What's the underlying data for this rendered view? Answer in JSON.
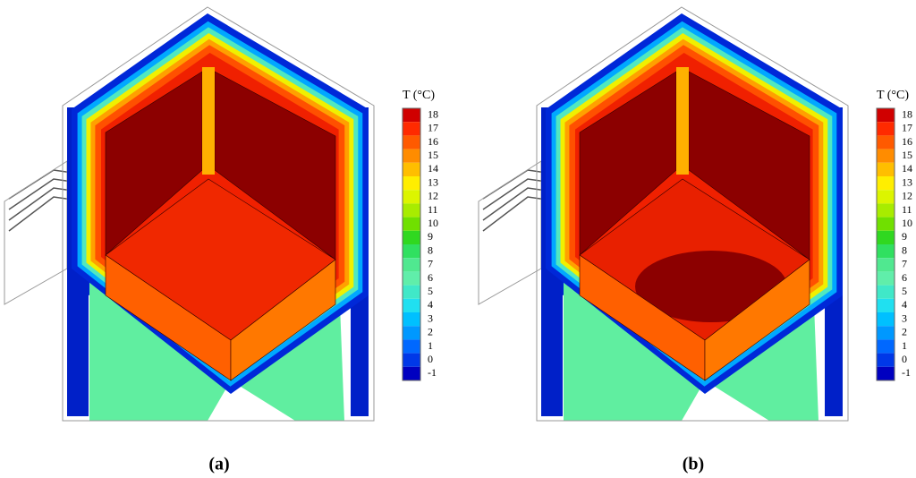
{
  "panels": [
    {
      "label": "(a)",
      "colorbar": {
        "title": "T (°C)",
        "ticks": [
          18,
          17,
          16,
          15,
          14,
          13,
          12,
          11,
          10,
          9,
          8,
          7,
          6,
          5,
          4,
          3,
          2,
          1,
          0,
          -1
        ]
      }
    },
    {
      "label": "(b)",
      "colorbar": {
        "title": "T (°C)",
        "ticks": [
          18,
          17,
          16,
          15,
          14,
          13,
          12,
          11,
          10,
          9,
          8,
          7,
          6,
          5,
          4,
          3,
          2,
          1,
          0,
          -1
        ]
      }
    }
  ]
}
